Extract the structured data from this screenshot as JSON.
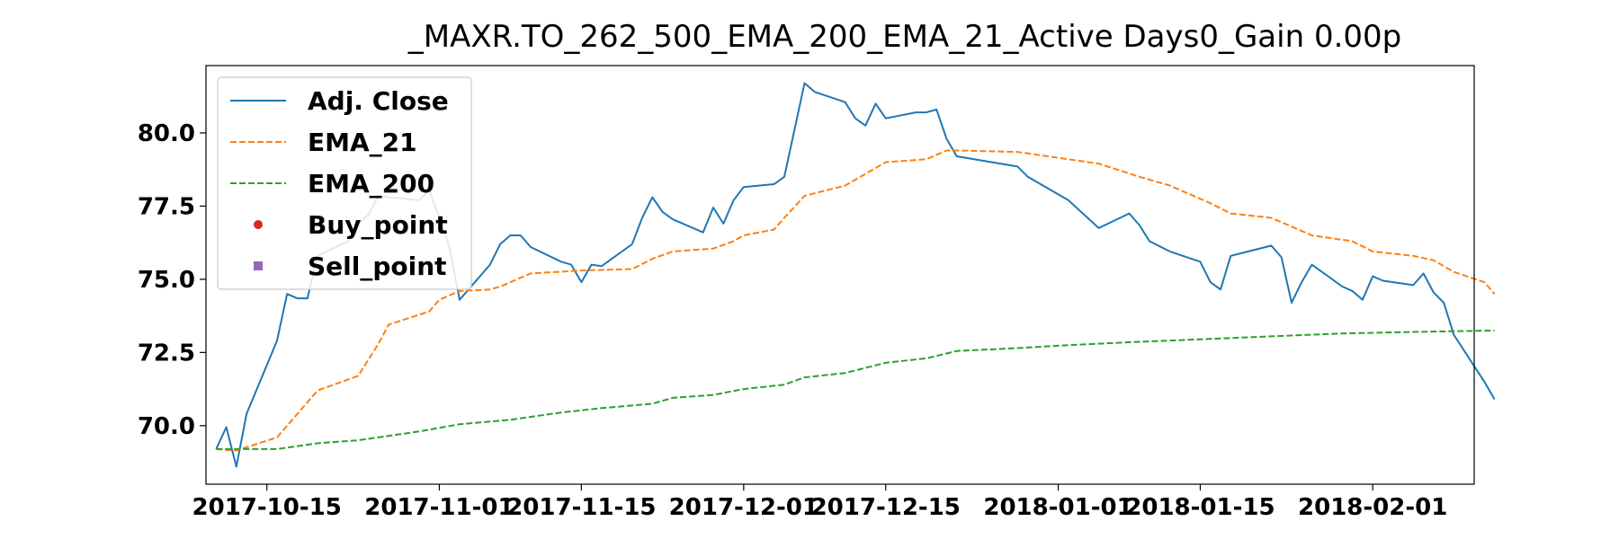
{
  "chart_data": {
    "type": "line",
    "title": "_MAXR.TO_262_500_EMA_200_EMA_21_Active Days0_Gain   0.00p",
    "xlabel": "",
    "ylabel": "",
    "x_ticks": [
      "2017-10-15",
      "2017-11-01",
      "2017-11-15",
      "2017-12-01",
      "2017-12-15",
      "2018-01-01",
      "2018-01-15",
      "2018-02-01"
    ],
    "y_ticks": [
      "70.0",
      "72.5",
      "75.0",
      "77.5",
      "80.0"
    ],
    "xlim": [
      "2017-10-09",
      "2018-02-11"
    ],
    "ylim": [
      68.0,
      82.3
    ],
    "grid": false,
    "legend_position": "top-left",
    "series": [
      {
        "name": "Adj. Close",
        "color": "#1f77b4",
        "style": "solid",
        "points": [
          [
            "2017-10-10",
            69.2
          ],
          [
            "2017-10-11",
            69.95
          ],
          [
            "2017-10-12",
            68.6
          ],
          [
            "2017-10-13",
            70.4
          ],
          [
            "2017-10-16",
            72.9
          ],
          [
            "2017-10-17",
            74.5
          ],
          [
            "2017-10-18",
            74.35
          ],
          [
            "2017-10-19",
            74.35
          ],
          [
            "2017-10-20",
            75.8
          ],
          [
            "2017-10-23",
            76.3
          ],
          [
            "2017-10-24",
            76.9
          ],
          [
            "2017-10-25",
            77.2
          ],
          [
            "2017-10-26",
            77.85
          ],
          [
            "2017-10-27",
            77.8
          ],
          [
            "2017-10-30",
            77.7
          ],
          [
            "2017-10-31",
            78.05
          ],
          [
            "2017-11-01",
            77.1
          ],
          [
            "2017-11-02",
            76.1
          ],
          [
            "2017-11-03",
            74.3
          ],
          [
            "2017-11-06",
            75.5
          ],
          [
            "2017-11-07",
            76.2
          ],
          [
            "2017-11-08",
            76.5
          ],
          [
            "2017-11-09",
            76.5
          ],
          [
            "2017-11-10",
            76.1
          ],
          [
            "2017-11-13",
            75.6
          ],
          [
            "2017-11-14",
            75.5
          ],
          [
            "2017-11-15",
            74.9
          ],
          [
            "2017-11-16",
            75.5
          ],
          [
            "2017-11-17",
            75.45
          ],
          [
            "2017-11-20",
            76.2
          ],
          [
            "2017-11-21",
            77.1
          ],
          [
            "2017-11-22",
            77.8
          ],
          [
            "2017-11-23",
            77.3
          ],
          [
            "2017-11-24",
            77.05
          ],
          [
            "2017-11-27",
            76.6
          ],
          [
            "2017-11-28",
            77.45
          ],
          [
            "2017-11-29",
            76.9
          ],
          [
            "2017-11-30",
            77.7
          ],
          [
            "2017-12-01",
            78.15
          ],
          [
            "2017-12-04",
            78.25
          ],
          [
            "2017-12-05",
            78.5
          ],
          [
            "2017-12-07",
            81.7
          ],
          [
            "2017-12-08",
            81.4
          ],
          [
            "2017-12-11",
            81.05
          ],
          [
            "2017-12-12",
            80.5
          ],
          [
            "2017-12-13",
            80.25
          ],
          [
            "2017-12-14",
            81.0
          ],
          [
            "2017-12-15",
            80.5
          ],
          [
            "2017-12-18",
            80.7
          ],
          [
            "2017-12-19",
            80.7
          ],
          [
            "2017-12-20",
            80.8
          ],
          [
            "2017-12-21",
            79.8
          ],
          [
            "2017-12-22",
            79.2
          ],
          [
            "2017-12-28",
            78.85
          ],
          [
            "2017-12-29",
            78.5
          ],
          [
            "2018-01-02",
            77.7
          ],
          [
            "2018-01-05",
            76.75
          ],
          [
            "2018-01-08",
            77.25
          ],
          [
            "2018-01-09",
            76.85
          ],
          [
            "2018-01-10",
            76.3
          ],
          [
            "2018-01-12",
            75.95
          ],
          [
            "2018-01-15",
            75.6
          ],
          [
            "2018-01-16",
            74.9
          ],
          [
            "2018-01-17",
            74.65
          ],
          [
            "2018-01-18",
            75.8
          ],
          [
            "2018-01-22",
            76.15
          ],
          [
            "2018-01-23",
            75.75
          ],
          [
            "2018-01-24",
            74.2
          ],
          [
            "2018-01-25",
            74.9
          ],
          [
            "2018-01-26",
            75.5
          ],
          [
            "2018-01-29",
            74.75
          ],
          [
            "2018-01-30",
            74.6
          ],
          [
            "2018-01-31",
            74.3
          ],
          [
            "2018-02-01",
            75.1
          ],
          [
            "2018-02-02",
            74.95
          ],
          [
            "2018-02-05",
            74.8
          ],
          [
            "2018-02-06",
            75.2
          ],
          [
            "2018-02-07",
            74.55
          ],
          [
            "2018-02-08",
            74.2
          ],
          [
            "2018-02-09",
            73.1
          ],
          [
            "2018-02-12",
            71.5
          ],
          [
            "2018-02-13",
            70.9
          ]
        ]
      },
      {
        "name": "EMA_21",
        "color": "#ff7f0e",
        "style": "dashed",
        "points": [
          [
            "2017-10-10",
            69.2
          ],
          [
            "2017-10-12",
            69.15
          ],
          [
            "2017-10-16",
            69.6
          ],
          [
            "2017-10-20",
            71.2
          ],
          [
            "2017-10-24",
            71.7
          ],
          [
            "2017-10-26",
            72.8
          ],
          [
            "2017-10-27",
            73.45
          ],
          [
            "2017-10-31",
            73.9
          ],
          [
            "2017-11-01",
            74.3
          ],
          [
            "2017-11-03",
            74.6
          ],
          [
            "2017-11-06",
            74.65
          ],
          [
            "2017-11-07",
            74.75
          ],
          [
            "2017-11-10",
            75.2
          ],
          [
            "2017-11-15",
            75.3
          ],
          [
            "2017-11-20",
            75.35
          ],
          [
            "2017-11-22",
            75.7
          ],
          [
            "2017-11-24",
            75.95
          ],
          [
            "2017-11-28",
            76.05
          ],
          [
            "2017-11-30",
            76.3
          ],
          [
            "2017-12-01",
            76.5
          ],
          [
            "2017-12-04",
            76.7
          ],
          [
            "2017-12-05",
            77.1
          ],
          [
            "2017-12-07",
            77.85
          ],
          [
            "2017-12-11",
            78.2
          ],
          [
            "2017-12-13",
            78.6
          ],
          [
            "2017-12-15",
            79.0
          ],
          [
            "2017-12-19",
            79.1
          ],
          [
            "2017-12-21",
            79.4
          ],
          [
            "2017-12-22",
            79.4
          ],
          [
            "2017-12-28",
            79.35
          ],
          [
            "2018-01-02",
            79.1
          ],
          [
            "2018-01-05",
            78.95
          ],
          [
            "2018-01-09",
            78.5
          ],
          [
            "2018-01-12",
            78.2
          ],
          [
            "2018-01-16",
            77.6
          ],
          [
            "2018-01-18",
            77.25
          ],
          [
            "2018-01-22",
            77.1
          ],
          [
            "2018-01-24",
            76.8
          ],
          [
            "2018-01-26",
            76.5
          ],
          [
            "2018-01-30",
            76.3
          ],
          [
            "2018-02-01",
            75.95
          ],
          [
            "2018-02-05",
            75.8
          ],
          [
            "2018-02-07",
            75.65
          ],
          [
            "2018-02-08",
            75.45
          ],
          [
            "2018-02-09",
            75.25
          ],
          [
            "2018-02-12",
            74.9
          ],
          [
            "2018-02-13",
            74.5
          ]
        ]
      },
      {
        "name": "EMA_200",
        "color": "#2ca02c",
        "style": "dashed",
        "points": [
          [
            "2017-10-10",
            69.2
          ],
          [
            "2017-10-16",
            69.2
          ],
          [
            "2017-10-20",
            69.4
          ],
          [
            "2017-10-24",
            69.5
          ],
          [
            "2017-10-30",
            69.8
          ],
          [
            "2017-11-03",
            70.05
          ],
          [
            "2017-11-08",
            70.2
          ],
          [
            "2017-11-13",
            70.45
          ],
          [
            "2017-11-17",
            70.6
          ],
          [
            "2017-11-22",
            70.75
          ],
          [
            "2017-11-24",
            70.95
          ],
          [
            "2017-11-28",
            71.05
          ],
          [
            "2017-12-01",
            71.25
          ],
          [
            "2017-12-05",
            71.4
          ],
          [
            "2017-12-07",
            71.65
          ],
          [
            "2017-12-11",
            71.8
          ],
          [
            "2017-12-15",
            72.15
          ],
          [
            "2017-12-19",
            72.3
          ],
          [
            "2017-12-22",
            72.55
          ],
          [
            "2017-12-28",
            72.65
          ],
          [
            "2018-01-02",
            72.75
          ],
          [
            "2018-01-08",
            72.85
          ],
          [
            "2018-01-15",
            72.95
          ],
          [
            "2018-01-22",
            73.05
          ],
          [
            "2018-01-29",
            73.15
          ],
          [
            "2018-02-05",
            73.2
          ],
          [
            "2018-02-13",
            73.25
          ]
        ]
      },
      {
        "name": "Buy_point",
        "color": "#d62728",
        "style": "marker-circle",
        "points": []
      },
      {
        "name": "Sell_point",
        "color": "#9467bd",
        "style": "marker-square",
        "points": []
      }
    ]
  }
}
